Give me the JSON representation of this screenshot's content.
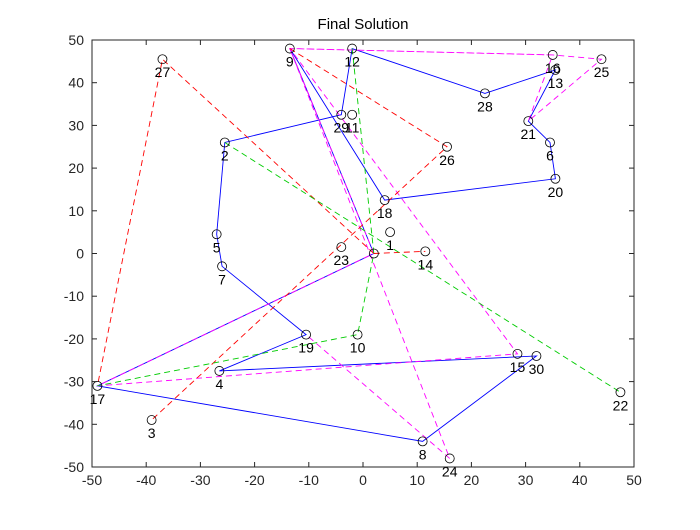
{
  "chart_data": {
    "type": "scatter",
    "title": "Final Solution",
    "xlabel": "",
    "ylabel": "",
    "xlim": [
      -50,
      50
    ],
    "ylim": [
      -50,
      50
    ],
    "xticks": [
      -50,
      -40,
      -30,
      -20,
      -10,
      0,
      10,
      20,
      30,
      40,
      50
    ],
    "yticks": [
      -50,
      -40,
      -30,
      -20,
      -10,
      0,
      10,
      20,
      30,
      40,
      50
    ],
    "grid": false,
    "depot": {
      "x": 2,
      "y": 0
    },
    "points": [
      {
        "id": "1",
        "x": 5,
        "y": 5
      },
      {
        "id": "2",
        "x": -25.5,
        "y": 26
      },
      {
        "id": "3",
        "x": -39,
        "y": -39
      },
      {
        "id": "4",
        "x": -26.5,
        "y": -27.5
      },
      {
        "id": "5",
        "x": -27,
        "y": 4.5
      },
      {
        "id": "6",
        "x": 34.5,
        "y": 26
      },
      {
        "id": "7",
        "x": -26,
        "y": -3
      },
      {
        "id": "8",
        "x": 11,
        "y": -44
      },
      {
        "id": "9",
        "x": -13.5,
        "y": 48
      },
      {
        "id": "10",
        "x": -1,
        "y": -19
      },
      {
        "id": "11",
        "x": -2,
        "y": 32.5
      },
      {
        "id": "12",
        "x": -2,
        "y": 48
      },
      {
        "id": "13",
        "x": 35.5,
        "y": 43
      },
      {
        "id": "14",
        "x": 11.5,
        "y": 0.5
      },
      {
        "id": "15",
        "x": 28.5,
        "y": -23.5
      },
      {
        "id": "16",
        "x": 35,
        "y": 46.5
      },
      {
        "id": "17",
        "x": -49,
        "y": -31
      },
      {
        "id": "18",
        "x": 4,
        "y": 12.5
      },
      {
        "id": "19",
        "x": -10.5,
        "y": -19
      },
      {
        "id": "20",
        "x": 35.5,
        "y": 17.5
      },
      {
        "id": "21",
        "x": 30.5,
        "y": 31
      },
      {
        "id": "22",
        "x": 47.5,
        "y": -32.5
      },
      {
        "id": "23",
        "x": -4,
        "y": 1.5
      },
      {
        "id": "24",
        "x": 16,
        "y": -48
      },
      {
        "id": "25",
        "x": 44,
        "y": 45.5
      },
      {
        "id": "26",
        "x": 15.5,
        "y": 25
      },
      {
        "id": "27",
        "x": -37,
        "y": 45.5
      },
      {
        "id": "28",
        "x": 22.5,
        "y": 37.5
      },
      {
        "id": "29",
        "x": -4,
        "y": 32.5
      },
      {
        "id": "30",
        "x": 32,
        "y": -24
      }
    ],
    "routes": [
      {
        "color": "#0000ff",
        "dash": "solid",
        "stops": [
          "depot",
          "9",
          "18",
          "20",
          "6",
          "21",
          "13",
          "28",
          "12",
          "29",
          "2",
          "5",
          "7",
          "19",
          "4",
          "30",
          "8",
          "17",
          "depot"
        ]
      },
      {
        "color": "#ff00ff",
        "dash": "dashed",
        "stops": [
          "depot",
          "9",
          "16",
          "25",
          "21",
          "16",
          "9",
          "15",
          "17",
          "depot"
        ]
      },
      {
        "color": "#ff00ff",
        "dash": "dashed",
        "stops": [
          "9",
          "24",
          "19"
        ]
      },
      {
        "color": "#ff0000",
        "dash": "dashed",
        "stops": [
          "depot",
          "27",
          "17"
        ]
      },
      {
        "color": "#ff0000",
        "dash": "dashed",
        "stops": [
          "9",
          "26",
          "3"
        ]
      },
      {
        "color": "#ff0000",
        "dash": "dashed",
        "stops": [
          "depot",
          "14"
        ]
      },
      {
        "color": "#00cc00",
        "dash": "dashed",
        "stops": [
          "2",
          "22"
        ]
      },
      {
        "color": "#00cc00",
        "dash": "dashed",
        "stops": [
          "12",
          "depot",
          "10",
          "17"
        ]
      }
    ]
  }
}
